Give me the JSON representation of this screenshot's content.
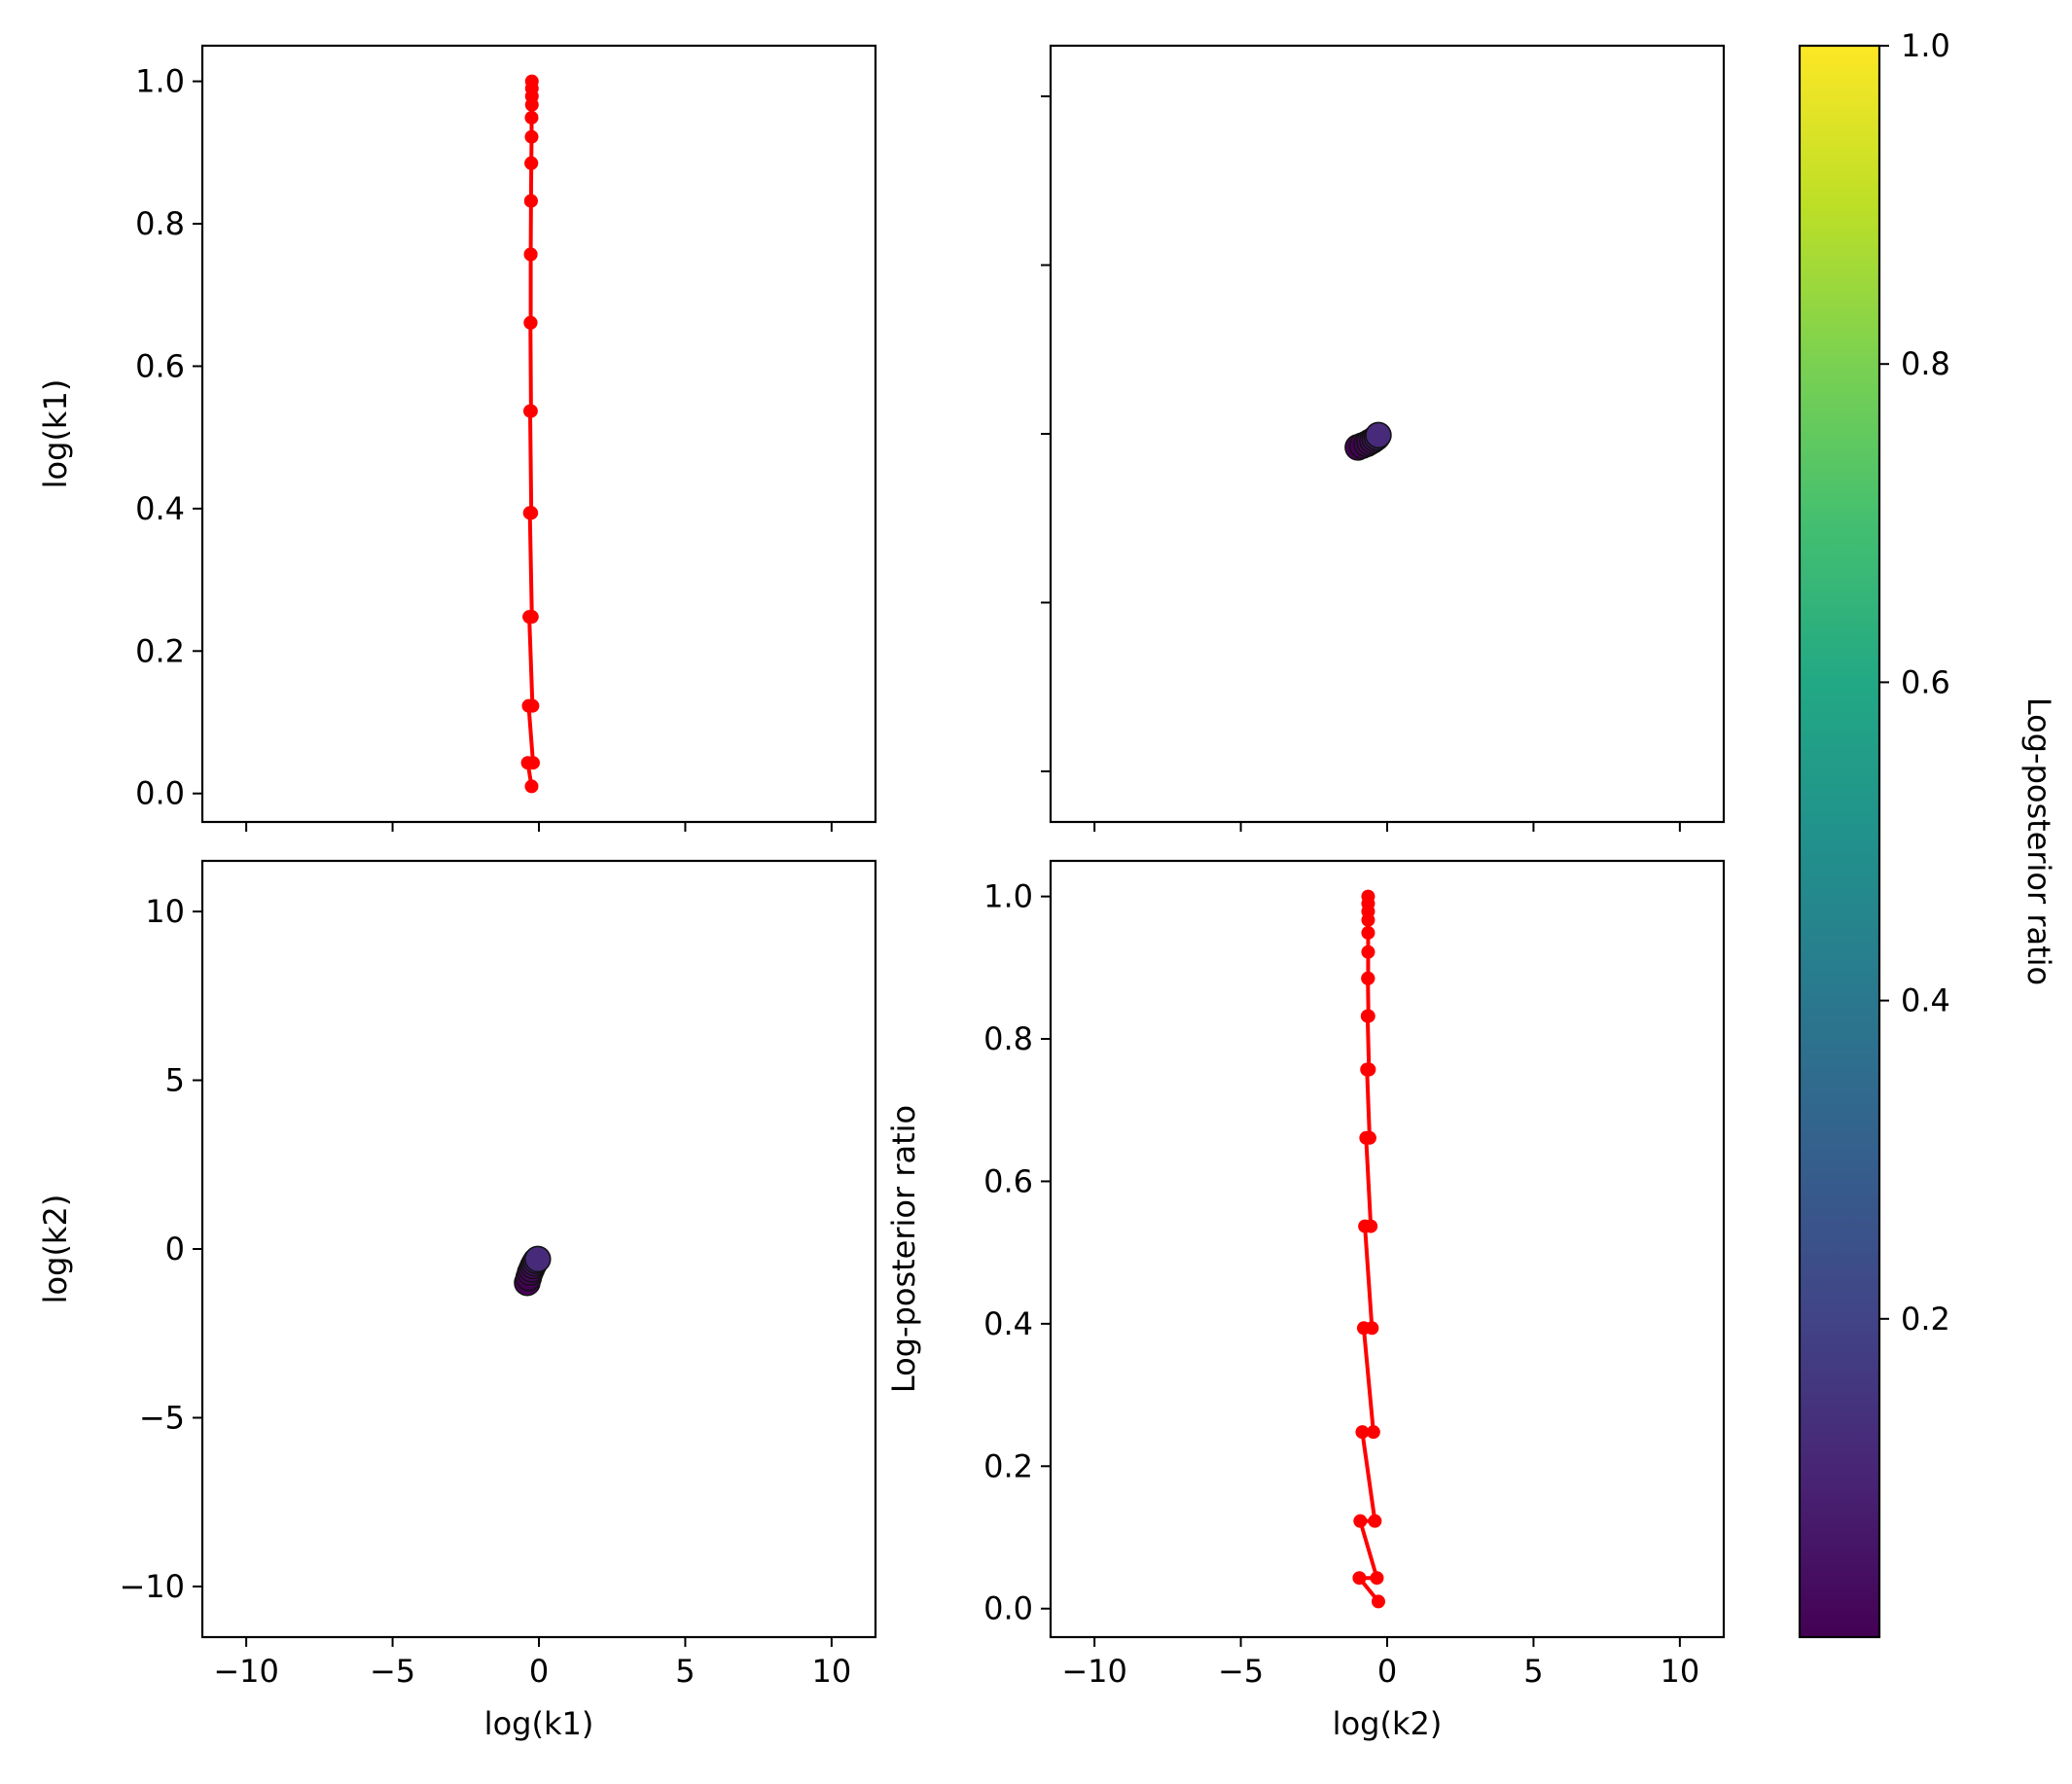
{
  "chart_data": [
    {
      "type": "line",
      "panel": "top-left",
      "xlabel": "",
      "ylabel": "log(k1)",
      "xlim": [
        -11.5,
        11.5
      ],
      "ylim": [
        -0.04,
        1.05
      ],
      "xticks": [
        -10,
        -5,
        0,
        5,
        10
      ],
      "yticks": [
        0.0,
        0.2,
        0.4,
        0.6,
        0.8,
        1.0
      ],
      "ytick_labels": [
        "0.0",
        "0.2",
        "0.4",
        "0.6",
        "0.8",
        "1.0"
      ],
      "show_xtick_labels": false,
      "show_ytick_labels": true,
      "color": "#ff0000",
      "x": [
        -0.25,
        -0.38,
        -0.2,
        -0.35,
        -0.22,
        -0.33,
        -0.24,
        -0.31,
        -0.26,
        -0.3,
        -0.27,
        -0.29,
        -0.28,
        -0.28,
        -0.28,
        -0.27,
        -0.27,
        -0.26,
        -0.26,
        -0.25,
        -0.25,
        -0.24,
        -0.24,
        -0.24,
        -0.24
      ],
      "y": [
        0.01,
        0.043,
        0.043,
        0.123,
        0.123,
        0.248,
        0.248,
        0.394,
        0.394,
        0.537,
        0.537,
        0.661,
        0.661,
        0.757,
        0.757,
        0.832,
        0.832,
        0.885,
        0.885,
        0.922,
        0.949,
        0.967,
        0.979,
        0.99,
        1.0
      ]
    },
    {
      "type": "scatter",
      "panel": "top-right",
      "xlabel": "",
      "ylabel": "",
      "xlim": [
        -11.5,
        11.5
      ],
      "ylim": [
        -11.5,
        11.5
      ],
      "xticks": [
        -10,
        -5,
        0,
        5,
        10
      ],
      "yticks": [
        -10,
        -5,
        0,
        5,
        10
      ],
      "show_xtick_labels": false,
      "show_ytick_labels": false,
      "x": [
        -1.0,
        -0.85,
        -0.7,
        -0.6,
        -0.5,
        -0.42,
        -0.35,
        -0.3
      ],
      "y": [
        -0.4,
        -0.35,
        -0.3,
        -0.25,
        -0.2,
        -0.15,
        -0.1,
        -0.04
      ],
      "c": [
        0.0,
        0.0,
        0.01,
        0.02,
        0.03,
        0.05,
        0.08,
        0.12
      ]
    },
    {
      "type": "scatter",
      "panel": "bottom-left",
      "xlabel": "log(k1)",
      "ylabel": "log(k2)",
      "xlim": [
        -11.5,
        11.5
      ],
      "ylim": [
        -11.5,
        11.5
      ],
      "xticks": [
        -10,
        -5,
        0,
        5,
        10
      ],
      "yticks": [
        -10,
        -5,
        0,
        5,
        10
      ],
      "xtick_labels": [
        "−10",
        "−5",
        "0",
        "5",
        "10"
      ],
      "ytick_labels": [
        "−10",
        "−5",
        "0",
        "5",
        "10"
      ],
      "show_xtick_labels": true,
      "show_ytick_labels": true,
      "x": [
        -0.4,
        -0.35,
        -0.3,
        -0.25,
        -0.2,
        -0.15,
        -0.1,
        -0.04
      ],
      "y": [
        -1.0,
        -0.85,
        -0.7,
        -0.6,
        -0.5,
        -0.42,
        -0.35,
        -0.3
      ],
      "c": [
        0.0,
        0.0,
        0.01,
        0.02,
        0.03,
        0.05,
        0.08,
        0.12
      ]
    },
    {
      "type": "line",
      "panel": "bottom-right",
      "xlabel": "log(k2)",
      "ylabel": "Log-posterior ratio",
      "xlim": [
        -11.5,
        11.5
      ],
      "ylim": [
        -0.04,
        1.05
      ],
      "xticks": [
        -10,
        -5,
        0,
        5,
        10
      ],
      "xtick_labels": [
        "−10",
        "−5",
        "0",
        "5",
        "10"
      ],
      "yticks": [
        0.0,
        0.2,
        0.4,
        0.6,
        0.8,
        1.0
      ],
      "ytick_labels": [
        "0.0",
        "0.2",
        "0.4",
        "0.6",
        "0.8",
        "1.0"
      ],
      "show_xtick_labels": true,
      "show_ytick_labels": true,
      "color": "#ff0000",
      "x": [
        -0.3,
        -0.95,
        -0.35,
        -0.92,
        -0.42,
        -0.85,
        -0.47,
        -0.8,
        -0.52,
        -0.76,
        -0.56,
        -0.72,
        -0.6,
        -0.69,
        -0.62,
        -0.67,
        -0.64,
        -0.66,
        -0.65,
        -0.65,
        -0.65,
        -0.65,
        -0.65,
        -0.65,
        -0.65
      ],
      "y": [
        0.01,
        0.043,
        0.043,
        0.123,
        0.123,
        0.248,
        0.248,
        0.394,
        0.394,
        0.537,
        0.537,
        0.661,
        0.661,
        0.757,
        0.757,
        0.832,
        0.832,
        0.885,
        0.885,
        0.922,
        0.949,
        0.967,
        0.979,
        0.99,
        1.0
      ]
    },
    {
      "type": "colorbar",
      "panel": "colorbar",
      "colormap": "viridis",
      "label": "Log-posterior ratio",
      "range": [
        0.0,
        1.0
      ],
      "ticks": [
        0.2,
        0.4,
        0.6,
        0.8,
        1.0
      ],
      "tick_labels": [
        "0.2",
        "0.4",
        "0.6",
        "0.8",
        "1.0"
      ]
    }
  ]
}
